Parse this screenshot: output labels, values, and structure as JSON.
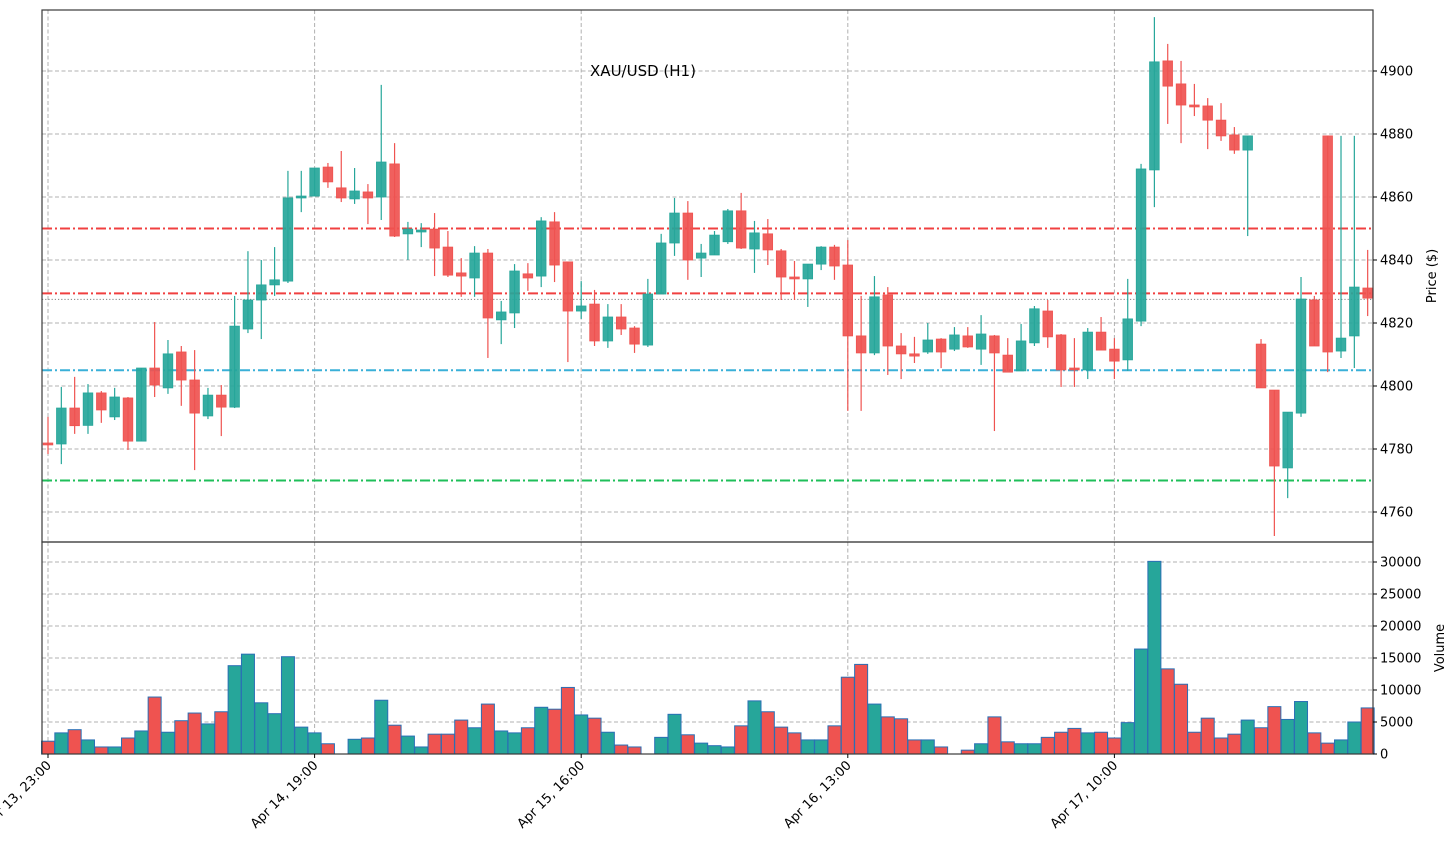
{
  "chart_data": {
    "type": "candlestick",
    "title": "XAU/USD (H1)",
    "price_panel": {
      "ylabel": "Price ($)",
      "ylim": [
        4749.5,
        4918.5
      ],
      "yticks": [
        4760,
        4780,
        4800,
        4820,
        4840,
        4860,
        4880,
        4900
      ],
      "grid": true,
      "horizontal_lines": [
        {
          "name": "resistance-line-upper",
          "price": 4850.0,
          "color": "#f04040",
          "style": "dashdot"
        },
        {
          "name": "resistance-line-lower",
          "price": 4829.4,
          "color": "#f04040",
          "style": "dashdot"
        },
        {
          "name": "current-price-line",
          "price": 4827.5,
          "color": "#808080",
          "style": "dotted"
        },
        {
          "name": "support-line-blue",
          "price": 4805.0,
          "color": "#3ab0d8",
          "style": "dashdot"
        },
        {
          "name": "support-line-green",
          "price": 4770.0,
          "color": "#1fbf5a",
          "style": "dashdot"
        }
      ]
    },
    "volume_panel": {
      "ylabel": "Volume",
      "ylim": [
        0,
        33000
      ],
      "yticks": [
        0,
        5000,
        10000,
        15000,
        20000,
        25000,
        30000
      ],
      "grid": true
    },
    "x_ticks": [
      {
        "index": 0,
        "label": "Apr 13, 23:00"
      },
      {
        "index": 20,
        "label": "Apr 14, 19:00"
      },
      {
        "index": 40,
        "label": "Apr 15, 16:00"
      },
      {
        "index": 60,
        "label": "Apr 16, 13:00"
      },
      {
        "index": 80,
        "label": "Apr 17, 10:00"
      }
    ],
    "colors": {
      "up": "#26a69a",
      "down": "#ef5350",
      "volume_edge": "#2a6fb5"
    },
    "candles": [
      {
        "o": 4781.9,
        "h": 4790.2,
        "l": 4778.4,
        "c": 4781.3,
        "v": 2000
      },
      {
        "o": 4781.6,
        "h": 4799.7,
        "l": 4775.2,
        "c": 4793.0,
        "v": 3300
      },
      {
        "o": 4793.0,
        "h": 4802.9,
        "l": 4784.8,
        "c": 4787.4,
        "v": 3800
      },
      {
        "o": 4787.5,
        "h": 4800.6,
        "l": 4784.8,
        "c": 4797.8,
        "v": 2200
      },
      {
        "o": 4797.8,
        "h": 4798.4,
        "l": 4788.3,
        "c": 4792.4,
        "v": 1100
      },
      {
        "o": 4790.2,
        "h": 4799.4,
        "l": 4789.2,
        "c": 4796.5,
        "v": 1100
      },
      {
        "o": 4796.2,
        "h": 4796.5,
        "l": 4779.7,
        "c": 4782.5,
        "v": 2500
      },
      {
        "o": 4782.5,
        "h": 4805.7,
        "l": 4782.5,
        "c": 4805.7,
        "v": 3600
      },
      {
        "o": 4805.7,
        "h": 4820.3,
        "l": 4796.5,
        "c": 4800.3,
        "v": 8900
      },
      {
        "o": 4799.4,
        "h": 4814.6,
        "l": 4797.5,
        "c": 4810.2,
        "v": 3400
      },
      {
        "o": 4810.8,
        "h": 4812.7,
        "l": 4793.7,
        "c": 4801.9,
        "v": 5200
      },
      {
        "o": 4801.9,
        "h": 4811.4,
        "l": 4773.3,
        "c": 4791.4,
        "v": 6400
      },
      {
        "o": 4790.5,
        "h": 4799.4,
        "l": 4789.5,
        "c": 4797.1,
        "v": 4700
      },
      {
        "o": 4797.1,
        "h": 4800.3,
        "l": 4784.1,
        "c": 4793.3,
        "v": 6600
      },
      {
        "o": 4793.3,
        "h": 4828.6,
        "l": 4793.0,
        "c": 4819.0,
        "v": 13800
      },
      {
        "o": 4818.1,
        "h": 4842.8,
        "l": 4816.8,
        "c": 4827.3,
        "v": 15600
      },
      {
        "o": 4827.3,
        "h": 4840.0,
        "l": 4814.9,
        "c": 4832.1,
        "v": 8000
      },
      {
        "o": 4832.1,
        "h": 4844.1,
        "l": 4828.6,
        "c": 4833.7,
        "v": 6300
      },
      {
        "o": 4833.3,
        "h": 4868.3,
        "l": 4832.7,
        "c": 4859.7,
        "v": 15200
      },
      {
        "o": 4859.7,
        "h": 4868.3,
        "l": 4855.2,
        "c": 4860.3,
        "v": 4200
      },
      {
        "o": 4860.3,
        "h": 4869.2,
        "l": 4860.3,
        "c": 4869.2,
        "v": 3300
      },
      {
        "o": 4869.5,
        "h": 4870.8,
        "l": 4862.9,
        "c": 4864.8,
        "v": 1600
      },
      {
        "o": 4862.9,
        "h": 4874.6,
        "l": 4858.4,
        "c": 4859.7,
        "v": 0
      },
      {
        "o": 4859.4,
        "h": 4869.2,
        "l": 4857.8,
        "c": 4861.9,
        "v": 2300
      },
      {
        "o": 4861.6,
        "h": 4864.1,
        "l": 4851.4,
        "c": 4859.7,
        "v": 2500
      },
      {
        "o": 4860.0,
        "h": 4895.6,
        "l": 4852.7,
        "c": 4871.1,
        "v": 8400
      },
      {
        "o": 4870.5,
        "h": 4877.1,
        "l": 4847.3,
        "c": 4847.6,
        "v": 4500
      },
      {
        "o": 4848.3,
        "h": 4852.1,
        "l": 4840.0,
        "c": 4849.8,
        "v": 2800
      },
      {
        "o": 4848.9,
        "h": 4851.7,
        "l": 4844.1,
        "c": 4849.5,
        "v": 1100
      },
      {
        "o": 4849.8,
        "h": 4854.9,
        "l": 4834.9,
        "c": 4843.8,
        "v": 3100
      },
      {
        "o": 4844.1,
        "h": 4849.2,
        "l": 4834.6,
        "c": 4835.2,
        "v": 3100
      },
      {
        "o": 4835.9,
        "h": 4840.6,
        "l": 4828.3,
        "c": 4834.9,
        "v": 5300
      },
      {
        "o": 4834.3,
        "h": 4844.4,
        "l": 4828.3,
        "c": 4842.2,
        "v": 4100
      },
      {
        "o": 4842.2,
        "h": 4843.5,
        "l": 4808.9,
        "c": 4821.6,
        "v": 7800
      },
      {
        "o": 4821.0,
        "h": 4827.0,
        "l": 4813.3,
        "c": 4823.5,
        "v": 3600
      },
      {
        "o": 4823.2,
        "h": 4838.7,
        "l": 4818.4,
        "c": 4836.5,
        "v": 3300
      },
      {
        "o": 4835.6,
        "h": 4839.0,
        "l": 4830.2,
        "c": 4834.3,
        "v": 4100
      },
      {
        "o": 4834.9,
        "h": 4853.6,
        "l": 4831.4,
        "c": 4852.4,
        "v": 7300
      },
      {
        "o": 4852.1,
        "h": 4855.2,
        "l": 4833.0,
        "c": 4838.4,
        "v": 7000
      },
      {
        "o": 4839.4,
        "h": 4839.4,
        "l": 4807.6,
        "c": 4823.8,
        "v": 10400
      },
      {
        "o": 4823.8,
        "h": 4833.3,
        "l": 4821.3,
        "c": 4825.4,
        "v": 6100
      },
      {
        "o": 4826.0,
        "h": 4830.5,
        "l": 4812.7,
        "c": 4814.3,
        "v": 5600
      },
      {
        "o": 4814.3,
        "h": 4826.0,
        "l": 4812.1,
        "c": 4821.9,
        "v": 3400
      },
      {
        "o": 4821.9,
        "h": 4826.0,
        "l": 4816.2,
        "c": 4818.1,
        "v": 1400
      },
      {
        "o": 4818.4,
        "h": 4819.0,
        "l": 4810.5,
        "c": 4813.3,
        "v": 1100
      },
      {
        "o": 4813.0,
        "h": 4834.0,
        "l": 4812.4,
        "c": 4829.2,
        "v": 0
      },
      {
        "o": 4829.2,
        "h": 4848.3,
        "l": 4829.2,
        "c": 4845.4,
        "v": 2600
      },
      {
        "o": 4845.4,
        "h": 4859.7,
        "l": 4841.3,
        "c": 4854.9,
        "v": 6200
      },
      {
        "o": 4854.9,
        "h": 4858.7,
        "l": 4833.7,
        "c": 4840.0,
        "v": 3000
      },
      {
        "o": 4840.6,
        "h": 4845.1,
        "l": 4834.6,
        "c": 4842.2,
        "v": 1700
      },
      {
        "o": 4841.6,
        "h": 4849.2,
        "l": 4841.6,
        "c": 4847.9,
        "v": 1300
      },
      {
        "o": 4845.8,
        "h": 4856.2,
        "l": 4845.1,
        "c": 4855.6,
        "v": 1100
      },
      {
        "o": 4855.6,
        "h": 4861.3,
        "l": 4843.5,
        "c": 4843.8,
        "v": 4400
      },
      {
        "o": 4843.5,
        "h": 4852.4,
        "l": 4835.9,
        "c": 4848.6,
        "v": 8300
      },
      {
        "o": 4848.3,
        "h": 4853.0,
        "l": 4838.4,
        "c": 4843.2,
        "v": 6600
      },
      {
        "o": 4842.9,
        "h": 4843.5,
        "l": 4827.3,
        "c": 4834.6,
        "v": 4200
      },
      {
        "o": 4834.6,
        "h": 4839.7,
        "l": 4827.3,
        "c": 4834.0,
        "v": 3300
      },
      {
        "o": 4834.0,
        "h": 4838.7,
        "l": 4825.1,
        "c": 4838.7,
        "v": 2200
      },
      {
        "o": 4838.7,
        "h": 4844.4,
        "l": 4836.8,
        "c": 4844.1,
        "v": 2200
      },
      {
        "o": 4844.1,
        "h": 4844.8,
        "l": 4833.7,
        "c": 4838.1,
        "v": 4400
      },
      {
        "o": 4838.4,
        "h": 4846.3,
        "l": 4792.1,
        "c": 4815.9,
        "v": 12000
      },
      {
        "o": 4815.9,
        "h": 4828.6,
        "l": 4792.1,
        "c": 4810.5,
        "v": 14000
      },
      {
        "o": 4810.5,
        "h": 4834.9,
        "l": 4809.8,
        "c": 4828.3,
        "v": 7800
      },
      {
        "o": 4828.9,
        "h": 4831.4,
        "l": 4803.5,
        "c": 4812.7,
        "v": 5800
      },
      {
        "o": 4812.7,
        "h": 4816.8,
        "l": 4802.2,
        "c": 4810.2,
        "v": 5500
      },
      {
        "o": 4810.2,
        "h": 4815.6,
        "l": 4807.3,
        "c": 4809.5,
        "v": 2200
      },
      {
        "o": 4810.8,
        "h": 4820.0,
        "l": 4810.2,
        "c": 4814.6,
        "v": 2200
      },
      {
        "o": 4814.9,
        "h": 4815.2,
        "l": 4805.7,
        "c": 4810.8,
        "v": 1100
      },
      {
        "o": 4811.7,
        "h": 4818.7,
        "l": 4811.1,
        "c": 4816.2,
        "v": 0
      },
      {
        "o": 4815.9,
        "h": 4818.7,
        "l": 4812.1,
        "c": 4812.4,
        "v": 600
      },
      {
        "o": 4811.7,
        "h": 4822.5,
        "l": 4806.7,
        "c": 4816.5,
        "v": 1600
      },
      {
        "o": 4815.9,
        "h": 4816.2,
        "l": 4785.7,
        "c": 4810.5,
        "v": 5800
      },
      {
        "o": 4809.8,
        "h": 4815.2,
        "l": 4804.8,
        "c": 4804.4,
        "v": 1900
      },
      {
        "o": 4804.8,
        "h": 4819.7,
        "l": 4804.8,
        "c": 4814.3,
        "v": 1600
      },
      {
        "o": 4813.7,
        "h": 4825.4,
        "l": 4812.7,
        "c": 4824.5,
        "v": 1600
      },
      {
        "o": 4823.8,
        "h": 4827.3,
        "l": 4812.1,
        "c": 4815.6,
        "v": 2600
      },
      {
        "o": 4816.2,
        "h": 4816.5,
        "l": 4799.7,
        "c": 4805.1,
        "v": 3400
      },
      {
        "o": 4805.7,
        "h": 4815.2,
        "l": 4799.7,
        "c": 4805.1,
        "v": 4000
      },
      {
        "o": 4805.1,
        "h": 4818.4,
        "l": 4802.2,
        "c": 4817.1,
        "v": 3300
      },
      {
        "o": 4817.1,
        "h": 4821.9,
        "l": 4811.4,
        "c": 4811.4,
        "v": 3400
      },
      {
        "o": 4811.7,
        "h": 4815.2,
        "l": 4802.2,
        "c": 4807.9,
        "v": 2500
      },
      {
        "o": 4808.3,
        "h": 4834.0,
        "l": 4804.8,
        "c": 4821.3,
        "v": 4900
      },
      {
        "o": 4820.6,
        "h": 4870.5,
        "l": 4819.0,
        "c": 4868.9,
        "v": 16400
      },
      {
        "o": 4868.6,
        "h": 4917.1,
        "l": 4856.8,
        "c": 4902.9,
        "v": 30100
      },
      {
        "o": 4903.2,
        "h": 4908.6,
        "l": 4883.2,
        "c": 4895.2,
        "v": 13300
      },
      {
        "o": 4895.9,
        "h": 4903.2,
        "l": 4877.1,
        "c": 4889.2,
        "v": 10900
      },
      {
        "o": 4889.2,
        "h": 4895.9,
        "l": 4885.7,
        "c": 4888.6,
        "v": 3400
      },
      {
        "o": 4888.9,
        "h": 4891.4,
        "l": 4875.2,
        "c": 4884.4,
        "v": 5600
      },
      {
        "o": 4884.4,
        "h": 4889.8,
        "l": 4877.8,
        "c": 4879.4,
        "v": 2500
      },
      {
        "o": 4879.7,
        "h": 4882.2,
        "l": 4873.7,
        "c": 4874.9,
        "v": 3100
      },
      {
        "o": 4874.9,
        "h": 4879.4,
        "l": 4847.6,
        "c": 4879.4,
        "v": 5300
      },
      {
        "o": 4813.3,
        "h": 4814.9,
        "l": 4799.4,
        "c": 4799.4,
        "v": 4100
      },
      {
        "o": 4798.7,
        "h": 4798.7,
        "l": 4752.4,
        "c": 4774.6,
        "v": 7400
      },
      {
        "o": 4774.0,
        "h": 4791.7,
        "l": 4764.4,
        "c": 4791.7,
        "v": 5400
      },
      {
        "o": 4791.4,
        "h": 4834.6,
        "l": 4790.2,
        "c": 4827.6,
        "v": 8200
      },
      {
        "o": 4827.3,
        "h": 4828.6,
        "l": 4812.7,
        "c": 4812.7,
        "v": 3300
      },
      {
        "o": 4879.4,
        "h": 4879.4,
        "l": 4804.4,
        "c": 4810.8,
        "v": 1700
      },
      {
        "o": 4811.1,
        "h": 4879.4,
        "l": 4808.9,
        "c": 4815.2,
        "v": 2200
      },
      {
        "o": 4815.9,
        "h": 4879.4,
        "l": 4805.7,
        "c": 4831.4,
        "v": 5000
      },
      {
        "o": 4831.1,
        "h": 4843.2,
        "l": 4822.2,
        "c": 4827.9,
        "v": 7200
      }
    ]
  },
  "labels": {
    "title": "XAU/USD (H1)",
    "price_axis_label": "Price ($)",
    "volume_axis_label": "Volume"
  }
}
